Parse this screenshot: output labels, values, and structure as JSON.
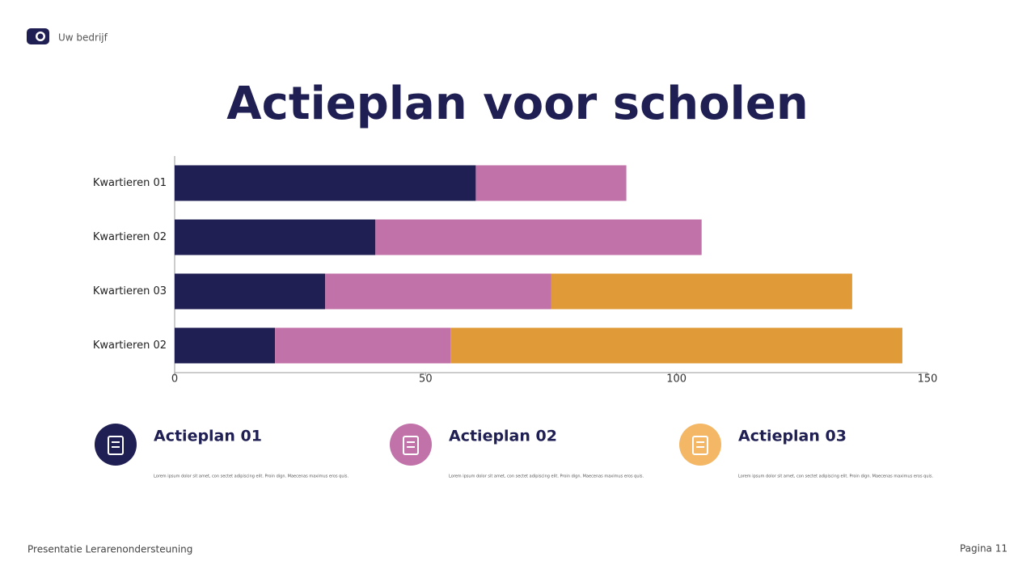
{
  "header": {
    "brand": "Uw bedrijf"
  },
  "chart_data": {
    "type": "stacked-bar-horizontal",
    "title": "Actieplan voor scholen",
    "categories": [
      "Kwartieren 01",
      "Kwartieren 02",
      "Kwartieren 03",
      "Kwartieren 02"
    ],
    "series": [
      {
        "color": "#1f1f54",
        "values": [
          60,
          40,
          30,
          20
        ]
      },
      {
        "color": "#c072a9",
        "values": [
          30,
          65,
          45,
          35
        ]
      },
      {
        "color": "#e09b38",
        "values": [
          null,
          null,
          60,
          90
        ]
      }
    ],
    "xlim": [
      0,
      150
    ],
    "xticks": [
      0,
      50,
      100,
      150
    ],
    "grid": false
  },
  "cards": [
    {
      "title": "Actieplan 01",
      "text": "Lorem ipsum dolor sit amet, con sectet adipiscing elit. Proin dign. Maecenas maximus eros quis.",
      "color": "#1f1f54"
    },
    {
      "title": "Actieplan 02",
      "text": "Lorem ipsum dolor sit amet, con sectet adipiscing elit. Proin dign. Maecenas maximus eros quis.",
      "color": "#c072a9"
    },
    {
      "title": "Actieplan 03",
      "text": "Lorem ipsum dolor sit amet, con sectet adipiscing elit. Proin dign. Maecenas maximus eros quis.",
      "color": "#f3b766"
    }
  ],
  "footer": {
    "left": "Presentatie Lerarenondersteuning",
    "right": "Pagina 11"
  }
}
